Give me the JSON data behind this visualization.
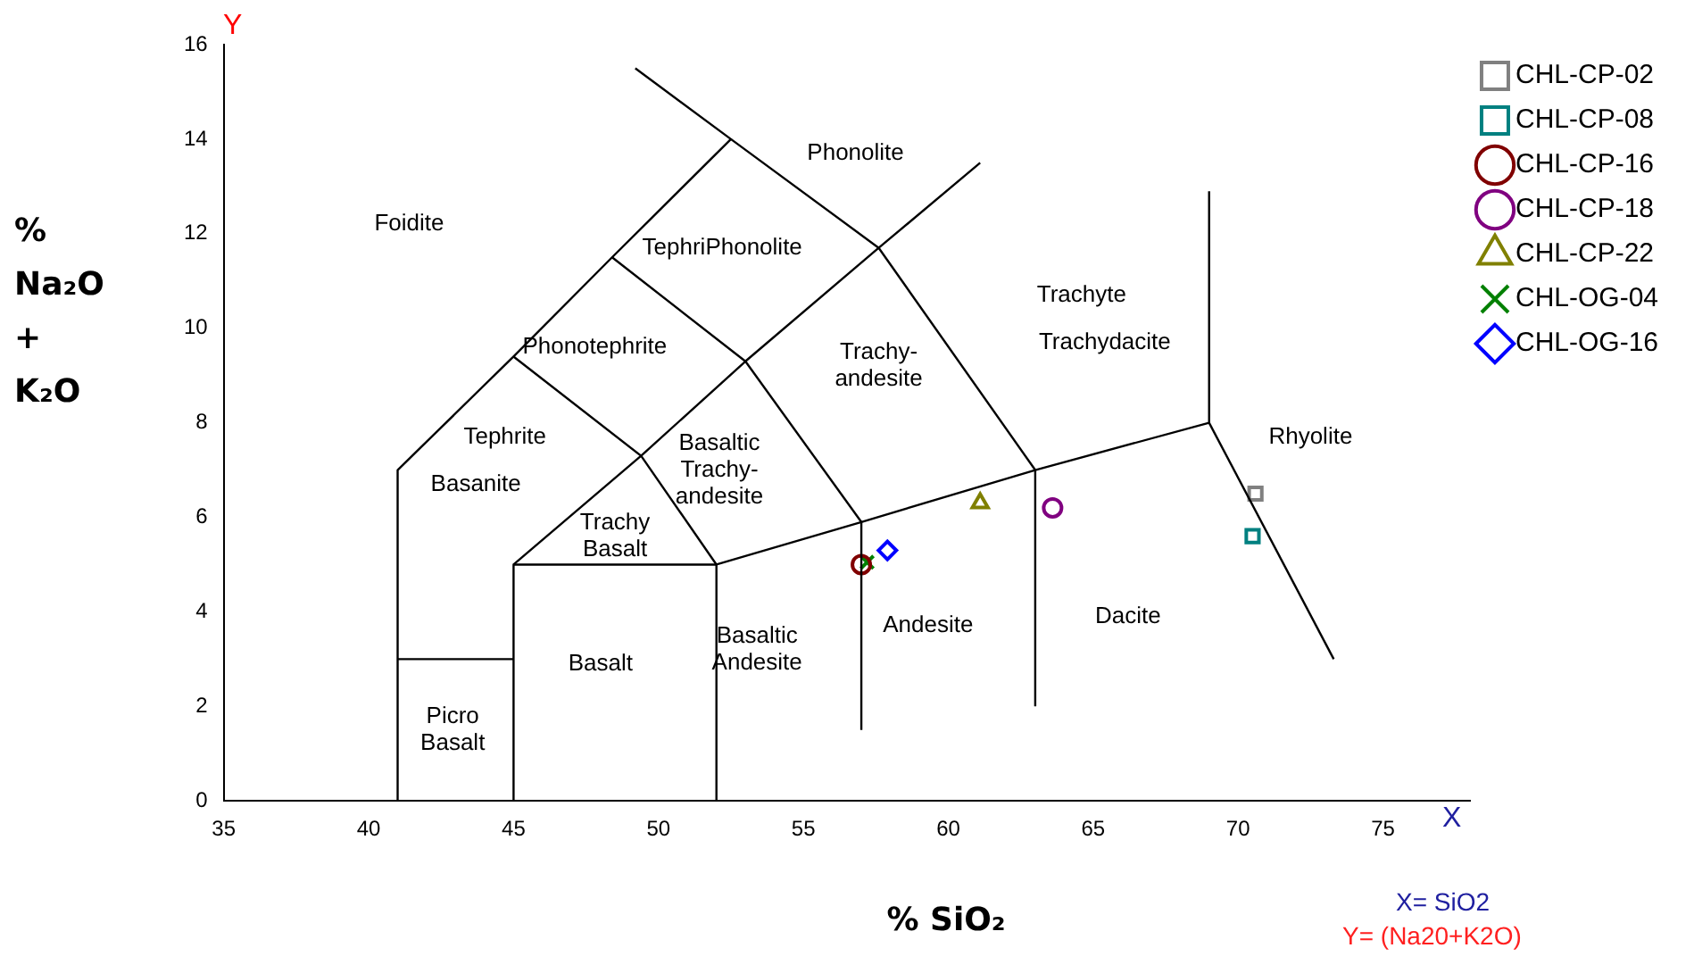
{
  "chart_data": {
    "type": "scatter",
    "xlabel": "% SiO₂",
    "ylabel": "% Na₂O + K₂O",
    "xlim": [
      35,
      78
    ],
    "ylim": [
      0,
      16
    ],
    "xticks": [
      35,
      40,
      45,
      50,
      55,
      60,
      65,
      70,
      75
    ],
    "yticks": [
      0,
      2,
      4,
      6,
      8,
      10,
      12,
      14,
      16
    ],
    "grid": false,
    "legend": "top right",
    "series": [
      {
        "type": "line",
        "color": "#000000",
        "marker": "none",
        "x": [
          41,
          41,
          45,
          48.4,
          52.5,
          49.2
        ],
        "values": [
          0,
          7,
          9.4,
          11.5,
          14,
          15.5
        ]
      },
      {
        "type": "line",
        "color": "#000000",
        "marker": "none",
        "x": [
          52.5,
          57.6,
          63,
          69,
          69
        ],
        "values": [
          14,
          11.7,
          7,
          8,
          12.9
        ]
      },
      {
        "type": "line",
        "color": "#000000",
        "marker": "none",
        "x": [
          69,
          73.3
        ],
        "values": [
          8,
          3
        ]
      },
      {
        "type": "line",
        "color": "#000000",
        "marker": "none",
        "x": [
          41,
          45
        ],
        "values": [
          3,
          3
        ]
      },
      {
        "type": "line",
        "color": "#000000",
        "marker": "none",
        "x": [
          45,
          45,
          52,
          57,
          63
        ],
        "values": [
          0,
          5,
          5,
          5.9,
          7
        ]
      },
      {
        "type": "line",
        "color": "#000000",
        "marker": "none",
        "x": [
          52,
          52
        ],
        "values": [
          0,
          5
        ]
      },
      {
        "type": "line",
        "color": "#000000",
        "marker": "none",
        "x": [
          57,
          57
        ],
        "values": [
          1.5,
          5.9
        ]
      },
      {
        "type": "line",
        "color": "#000000",
        "marker": "none",
        "x": [
          63,
          63
        ],
        "values": [
          2,
          7
        ]
      },
      {
        "type": "line",
        "color": "#000000",
        "marker": "none",
        "x": [
          45,
          49.4,
          53,
          57.6,
          61.1
        ],
        "values": [
          5,
          7.3,
          9.3,
          11.7,
          13.5
        ]
      },
      {
        "type": "line",
        "color": "#000000",
        "marker": "none",
        "x": [
          45,
          49.4,
          52
        ],
        "values": [
          9.4,
          7.3,
          5
        ]
      },
      {
        "type": "line",
        "color": "#000000",
        "marker": "none",
        "x": [
          48.4,
          53,
          57
        ],
        "values": [
          11.5,
          9.3,
          5.9
        ]
      },
      {
        "name": "CHL-CP-02",
        "color": "#808080",
        "marker": "square",
        "x": [
          70.6
        ],
        "values": [
          6.5
        ]
      },
      {
        "name": "CHL-CP-08",
        "color": "#008080",
        "marker": "square",
        "x": [
          70.5
        ],
        "values": [
          5.6
        ]
      },
      {
        "name": "CHL-CP-16",
        "color": "#800000",
        "marker": "circle",
        "x": [
          57.0
        ],
        "values": [
          5.0
        ]
      },
      {
        "name": "CHL-CP-18",
        "color": "#800080",
        "marker": "circle",
        "x": [
          63.6
        ],
        "values": [
          6.2
        ]
      },
      {
        "name": "CHL-CP-22",
        "color": "#808000",
        "marker": "triangle",
        "x": [
          61.1
        ],
        "values": [
          6.3
        ]
      },
      {
        "name": "CHL-OG-04",
        "color": "#008000",
        "marker": "cross",
        "x": [
          57.2
        ],
        "values": [
          5.05
        ]
      },
      {
        "name": "CHL-OG-16",
        "color": "#0000ff",
        "marker": "diamond",
        "x": [
          57.9
        ],
        "values": [
          5.3
        ]
      }
    ],
    "annotations": [
      "Foidite",
      "Phonolite",
      "TephriPhonolite",
      "Phonotephrite",
      "Tephrite",
      "Basanite",
      "Basaltic\nTrachy-\nandesite",
      "Trachy\nBasalt",
      "Basalt",
      "Basaltic\nAndesite",
      "Picro\nBasalt",
      "Trachy-\nandesite",
      "Trachyte",
      "Trachydacite",
      "Rhyolite",
      "Andesite",
      "Dacite",
      "Y",
      "X",
      "X= SiO2",
      "Y= (Na20+K2O)"
    ]
  }
}
